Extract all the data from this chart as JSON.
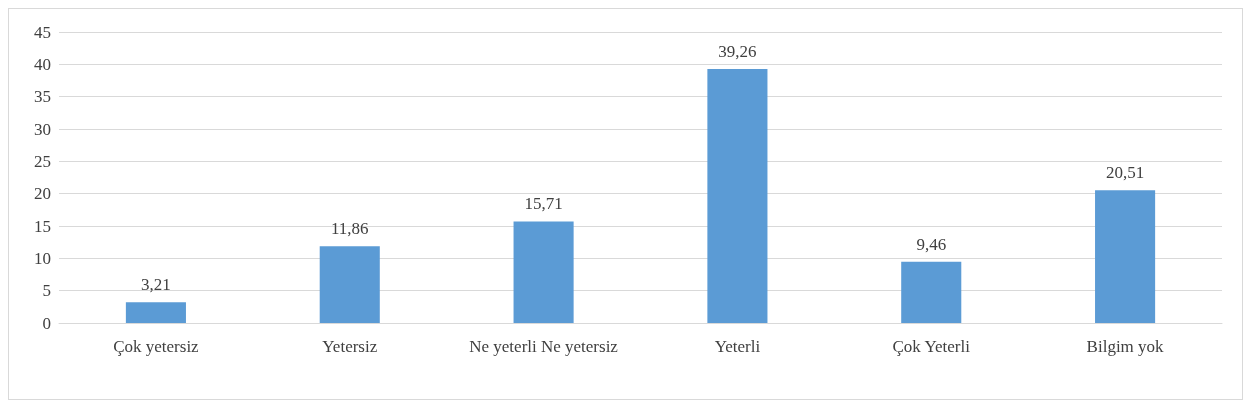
{
  "chart_data": {
    "type": "bar",
    "categories": [
      "Çok yetersiz",
      "Yetersiz",
      "Ne yeterli Ne yetersiz",
      "Yeterli",
      "Çok Yeterli",
      "Bilgim yok"
    ],
    "values": [
      3.21,
      11.86,
      15.71,
      39.26,
      9.46,
      20.51
    ],
    "value_labels": [
      "3,21",
      "11,86",
      "15,71",
      "39,26",
      "9,46",
      "20,51"
    ],
    "color": "#5b9bd5",
    "ylim": [
      0,
      45
    ],
    "yticks": [
      0,
      5,
      10,
      15,
      20,
      25,
      30,
      35,
      40,
      45
    ],
    "grid": "y"
  }
}
